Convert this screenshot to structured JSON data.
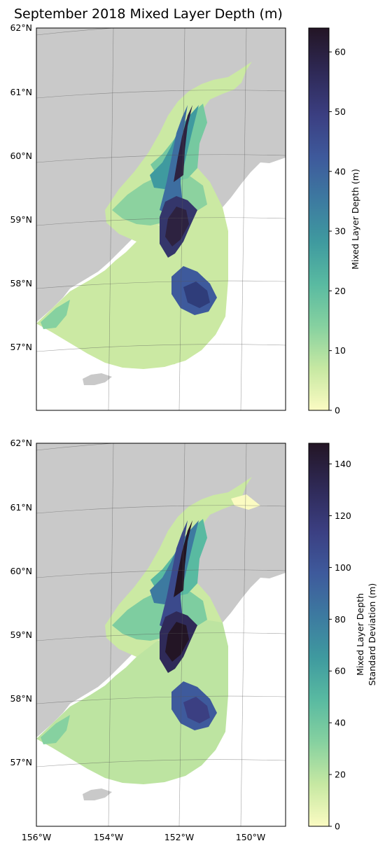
{
  "title": "September 2018 Mixed Layer Depth (m)",
  "lat_labels": [
    "62°N",
    "61°N",
    "60°N",
    "59°N",
    "58°N",
    "57°N"
  ],
  "lon_labels": [
    "156°W",
    "154°W",
    "152°W",
    "150°W"
  ],
  "colors": {
    "land": "#c9c9c9",
    "cmap": [
      "#fbfbc2",
      "#c6e8a2",
      "#86d1a0",
      "#59baa1",
      "#3f9a9f",
      "#3d7aa0",
      "#3e5a9c",
      "#3b3f82",
      "#2f2a58",
      "#231525"
    ]
  },
  "panels": [
    {
      "name": "mean",
      "colorbar": {
        "label_lines": [
          "Mixed Layer Depth (m)"
        ],
        "ticks": [
          0,
          10,
          20,
          30,
          40,
          50,
          60
        ],
        "range": [
          0,
          64
        ]
      }
    },
    {
      "name": "std",
      "colorbar": {
        "label_lines": [
          "Mixed Layer Depth",
          "Standard Deviation (m)"
        ],
        "ticks": [
          0,
          20,
          40,
          60,
          80,
          100,
          120,
          140
        ],
        "range": [
          0,
          148
        ]
      }
    }
  ]
}
